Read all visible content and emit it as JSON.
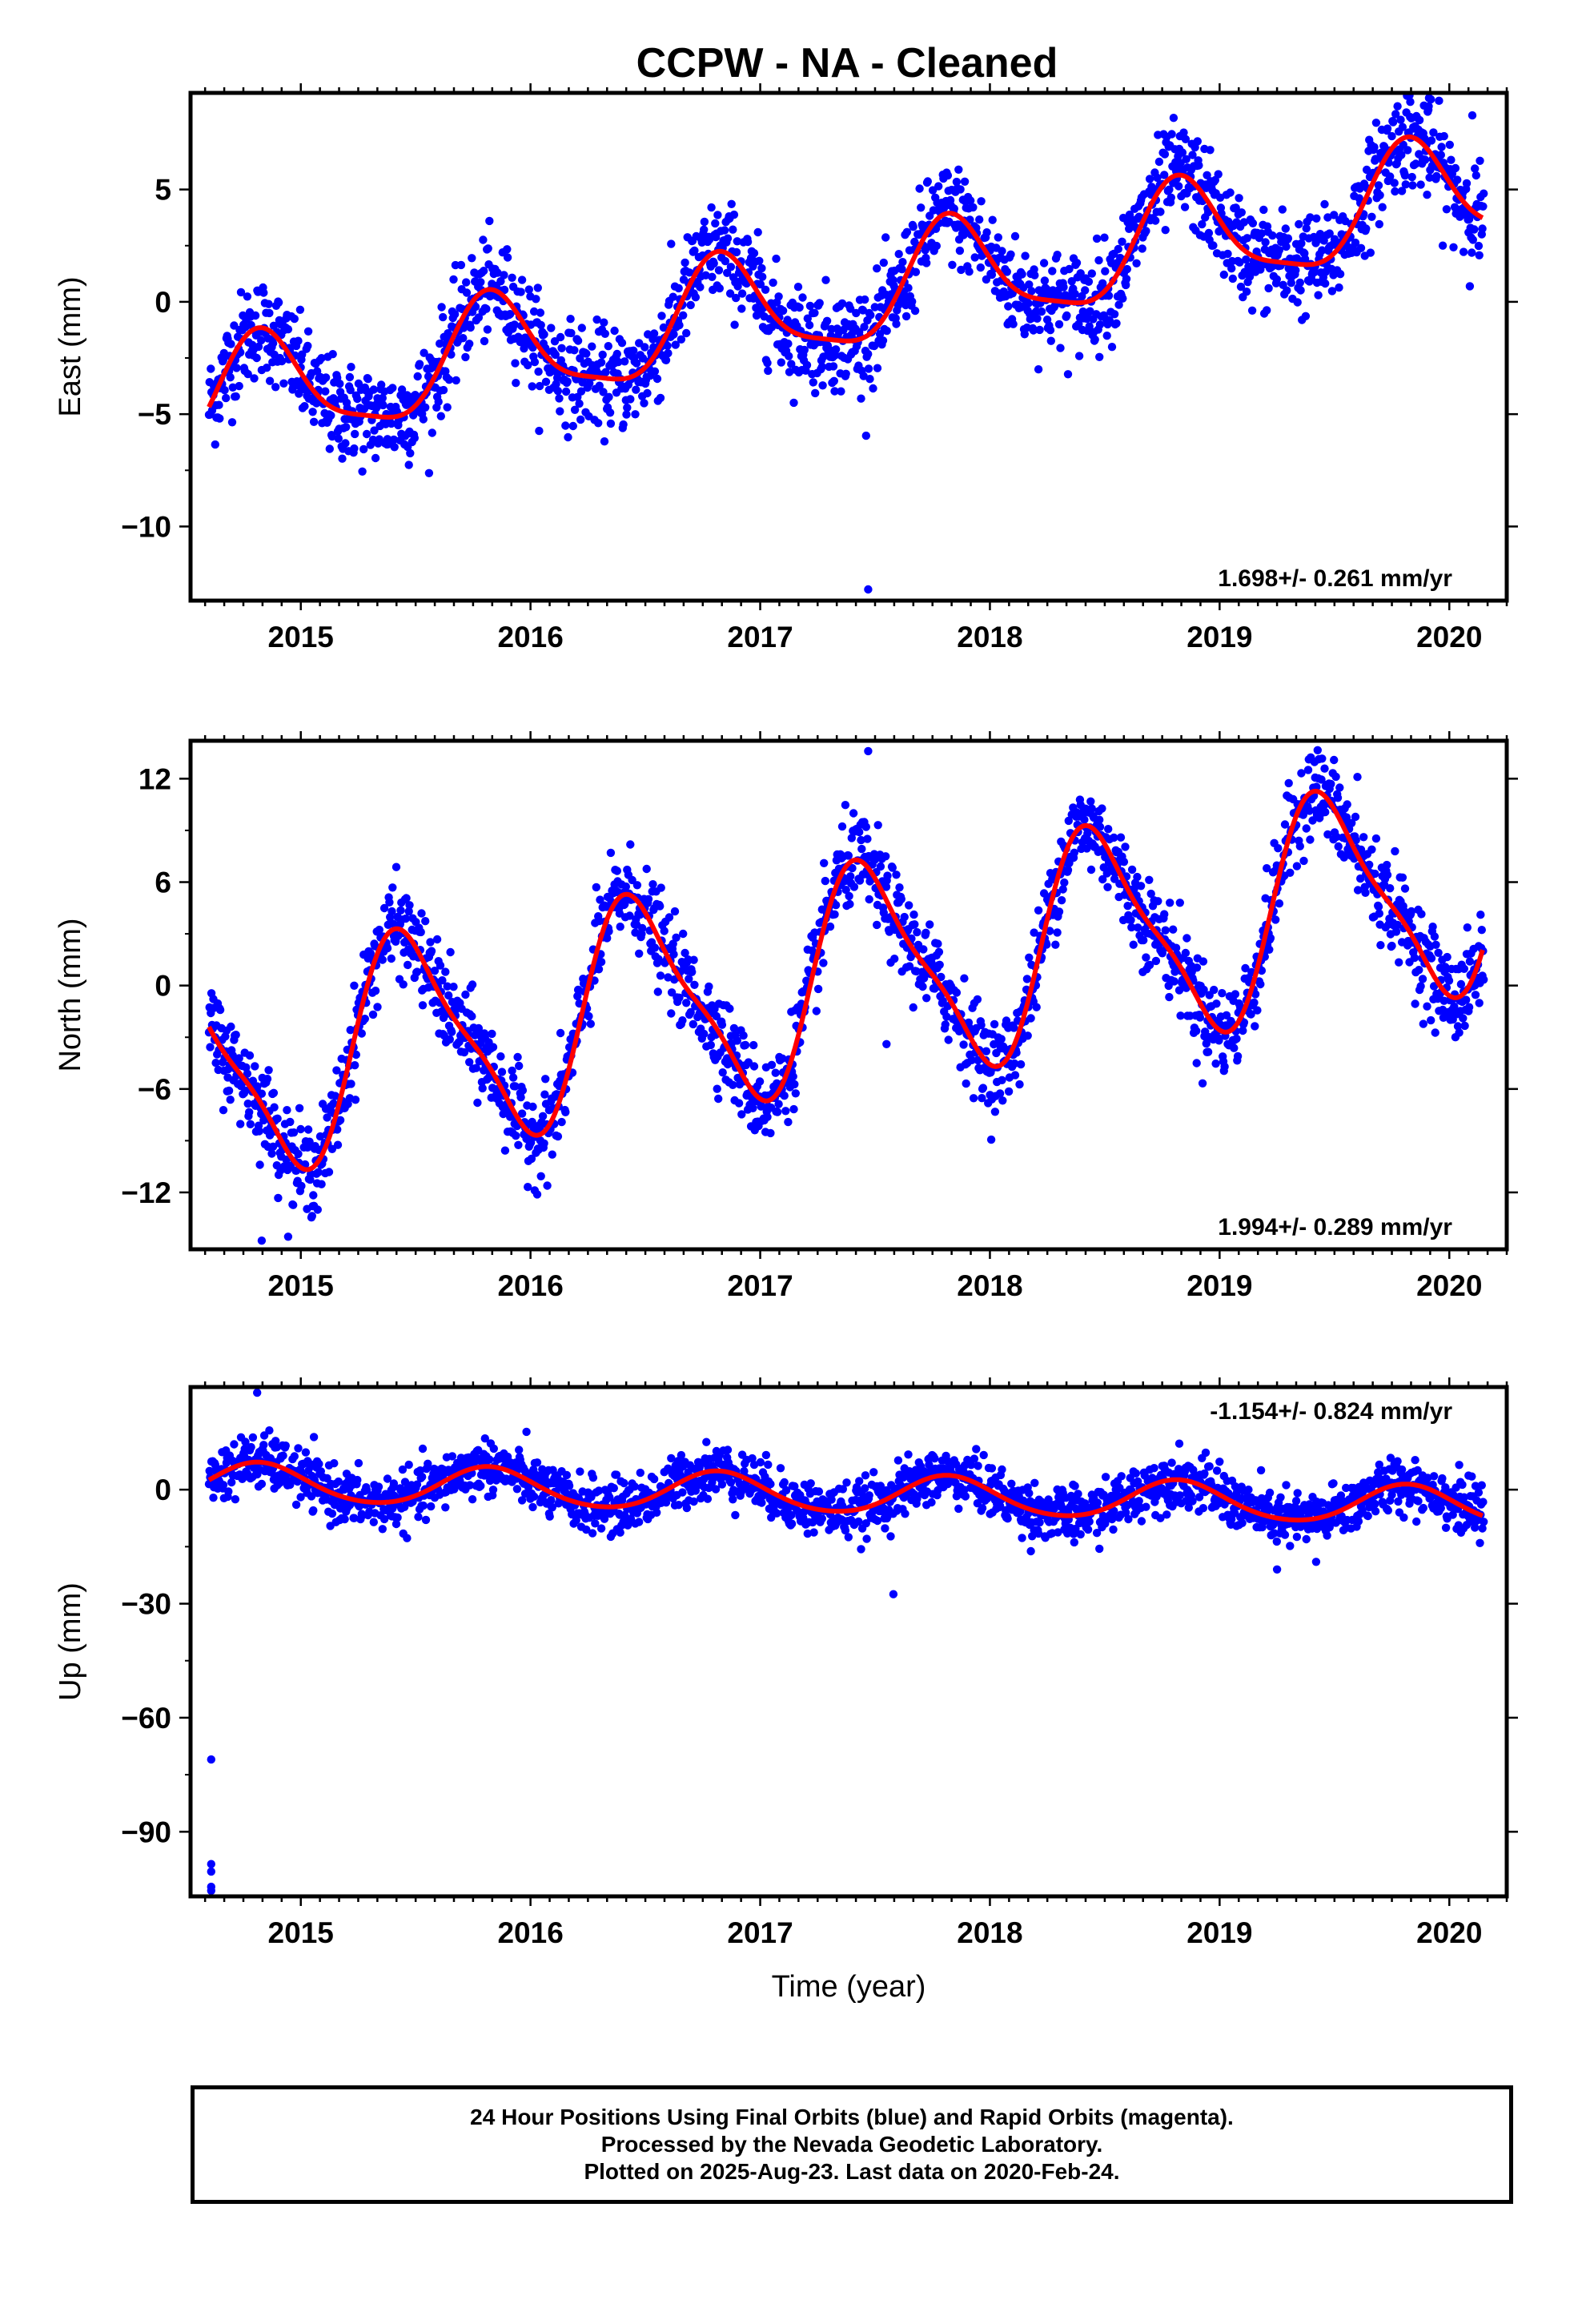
{
  "title": "CCPW  - NA - Cleaned",
  "colors": {
    "data_points": "#0000ff",
    "model_fit": "#ff0000",
    "axes": "#000000"
  },
  "chart_data": [
    {
      "type": "scatter",
      "panel": "east",
      "ylabel": "East (mm)",
      "xlabel": "",
      "xlim": [
        2014.52,
        2020.25
      ],
      "ylim": [
        -13.3,
        9.3
      ],
      "yticks": [
        5,
        0,
        -5,
        -10
      ],
      "ytick_labels": [
        "5",
        "0",
        "−5",
        "−10"
      ],
      "xticks": [
        2015,
        2016,
        2017,
        2018,
        2019,
        2020
      ],
      "xtick_labels": [
        "2015",
        "2016",
        "2017",
        "2018",
        "2019",
        "2020"
      ],
      "rate_text": "1.698+/- 0.261 mm/yr",
      "rate_position": "bottom-right",
      "model": {
        "offset": -4.5,
        "trend": 1.698,
        "ref_year": 2014.6,
        "annual_amp": 2.4,
        "annual_peak": 0.83,
        "semiannual_amp": 0.6,
        "semiannual_peak": 0.3
      },
      "scatter_sd": 1.1,
      "start": 2014.6,
      "end": 2020.15,
      "outliers": [
        [
          2017.47,
          -12.8
        ],
        [
          2019.83,
          8.9
        ],
        [
          2019.91,
          8.7
        ],
        [
          2020.1,
          8.3
        ]
      ],
      "grid": false
    },
    {
      "type": "scatter",
      "panel": "north",
      "ylabel": "North (mm)",
      "xlabel": "",
      "xlim": [
        2014.52,
        2020.25
      ],
      "ylim": [
        -15.3,
        14.2
      ],
      "yticks": [
        12,
        6,
        0,
        -6,
        -12
      ],
      "ytick_labels": [
        "12",
        "6",
        "0",
        "−6",
        "−12"
      ],
      "xticks": [
        2015,
        2016,
        2017,
        2018,
        2019,
        2020
      ],
      "xtick_labels": [
        "2015",
        "2016",
        "2017",
        "2018",
        "2019",
        "2020"
      ],
      "rate_text": "1.994+/- 0.289 mm/yr",
      "rate_position": "bottom-right",
      "model": {
        "offset": -5.0,
        "trend": 1.994,
        "ref_year": 2014.6,
        "annual_amp": 6.0,
        "annual_peak": 0.47,
        "semiannual_amp": 1.5,
        "semiannual_peak": 0.35
      },
      "scatter_sd": 1.3,
      "start": 2014.6,
      "end": 2020.15,
      "outliers": [
        [
          2014.83,
          -14.8
        ],
        [
          2017.47,
          13.6
        ],
        [
          2019.6,
          12.1
        ],
        [
          2017.55,
          -3.4
        ],
        [
          2018.9,
          -4.5
        ]
      ],
      "grid": false
    },
    {
      "type": "scatter",
      "panel": "up",
      "ylabel": "Up (mm)",
      "xlabel": "Time (year)",
      "xlim": [
        2014.52,
        2020.25
      ],
      "ylim": [
        -107,
        27
      ],
      "yticks": [
        0,
        -30,
        -60,
        -90
      ],
      "ytick_labels": [
        "0",
        "−30",
        "−60",
        "−90"
      ],
      "xticks": [
        2015,
        2016,
        2017,
        2018,
        2019,
        2020
      ],
      "xtick_labels": [
        "2015",
        "2016",
        "2017",
        "2018",
        "2019",
        "2020"
      ],
      "rate_text": "-1.154+/- 0.824 mm/yr",
      "rate_position": "top-right",
      "model": {
        "offset": 2.0,
        "trend": -1.154,
        "ref_year": 2014.6,
        "annual_amp": 5.0,
        "annual_peak": 0.82,
        "semiannual_amp": 0.5,
        "semiannual_peak": 0.3
      },
      "scatter_sd": 3.5,
      "start": 2014.6,
      "end": 2020.15,
      "outliers": [
        [
          2014.61,
          -71
        ],
        [
          2014.61,
          -98.5
        ],
        [
          2014.61,
          -100.5
        ],
        [
          2014.61,
          -104.5
        ],
        [
          2014.61,
          -105.5
        ],
        [
          2017.58,
          -27.5
        ],
        [
          2014.81,
          25.5
        ],
        [
          2019.25,
          -21
        ],
        [
          2019.42,
          -19
        ]
      ],
      "grid": false
    }
  ],
  "footer": {
    "line1": "24 Hour Positions Using Final Orbits (blue) and Rapid Orbits (magenta).",
    "line2": "Processed by the Nevada Geodetic Laboratory.",
    "line3": "Plotted on 2025-Aug-23. Last data on 2020-Feb-24."
  }
}
